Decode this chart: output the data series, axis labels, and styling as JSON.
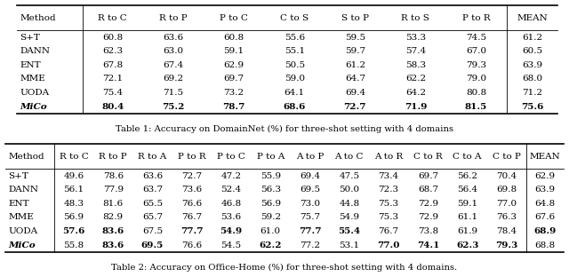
{
  "table1": {
    "caption": "Table 1: Accuracy on DomainNet (%) for three-shot setting with 4 domains",
    "headers": [
      "Method",
      "R to C",
      "R to P",
      "P to C",
      "C to S",
      "S to P",
      "R to S",
      "P to R",
      "MEAN"
    ],
    "rows": [
      {
        "method": "S+T",
        "values": [
          "60.8",
          "63.6",
          "60.8",
          "55.6",
          "59.5",
          "53.3",
          "74.5",
          "61.2"
        ],
        "bold": []
      },
      {
        "method": "DANN",
        "values": [
          "62.3",
          "63.0",
          "59.1",
          "55.1",
          "59.7",
          "57.4",
          "67.0",
          "60.5"
        ],
        "bold": []
      },
      {
        "method": "ENT",
        "values": [
          "67.8",
          "67.4",
          "62.9",
          "50.5",
          "61.2",
          "58.3",
          "79.3",
          "63.9"
        ],
        "bold": []
      },
      {
        "method": "MME",
        "values": [
          "72.1",
          "69.2",
          "69.7",
          "59.0",
          "64.7",
          "62.2",
          "79.0",
          "68.0"
        ],
        "bold": []
      },
      {
        "method": "UODA",
        "values": [
          "75.4",
          "71.5",
          "73.2",
          "64.1",
          "69.4",
          "64.2",
          "80.8",
          "71.2"
        ],
        "bold": []
      },
      {
        "method": "MiCo",
        "values": [
          "80.4",
          "75.2",
          "78.7",
          "68.6",
          "72.7",
          "71.9",
          "81.5",
          "75.6"
        ],
        "bold": [
          0,
          1,
          2,
          3,
          4,
          5,
          6,
          7
        ]
      }
    ]
  },
  "table2": {
    "caption": "Table 2: Accuracy on Office-Home (%) for three-shot setting with 4 domains.",
    "headers": [
      "Method",
      "R to C",
      "R to P",
      "R to A",
      "P to R",
      "P to C",
      "P to A",
      "A to P",
      "A to C",
      "A to R",
      "C to R",
      "C to A",
      "C to P",
      "MEAN"
    ],
    "rows": [
      {
        "method": "S+T",
        "values": [
          "49.6",
          "78.6",
          "63.6",
          "72.7",
          "47.2",
          "55.9",
          "69.4",
          "47.5",
          "73.4",
          "69.7",
          "56.2",
          "70.4",
          "62.9"
        ],
        "bold": []
      },
      {
        "method": "DANN",
        "values": [
          "56.1",
          "77.9",
          "63.7",
          "73.6",
          "52.4",
          "56.3",
          "69.5",
          "50.0",
          "72.3",
          "68.7",
          "56.4",
          "69.8",
          "63.9"
        ],
        "bold": []
      },
      {
        "method": "ENT",
        "values": [
          "48.3",
          "81.6",
          "65.5",
          "76.6",
          "46.8",
          "56.9",
          "73.0",
          "44.8",
          "75.3",
          "72.9",
          "59.1",
          "77.0",
          "64.8"
        ],
        "bold": []
      },
      {
        "method": "MME",
        "values": [
          "56.9",
          "82.9",
          "65.7",
          "76.7",
          "53.6",
          "59.2",
          "75.7",
          "54.9",
          "75.3",
          "72.9",
          "61.1",
          "76.3",
          "67.6"
        ],
        "bold": []
      },
      {
        "method": "UODA",
        "values": [
          "57.6",
          "83.6",
          "67.5",
          "77.7",
          "54.9",
          "61.0",
          "77.7",
          "55.4",
          "76.7",
          "73.8",
          "61.9",
          "78.4",
          "68.9"
        ],
        "bold": [
          0,
          1,
          3,
          4,
          6,
          7,
          12
        ]
      },
      {
        "method": "MiCo",
        "values": [
          "55.8",
          "83.6",
          "69.5",
          "76.6",
          "54.5",
          "62.2",
          "77.2",
          "53.1",
          "77.0",
          "74.1",
          "62.3",
          "79.3",
          "68.8"
        ],
        "bold": [
          1,
          2,
          5,
          8,
          9,
          10,
          11
        ]
      }
    ]
  },
  "bg_color": "#ffffff",
  "text_color": "#000000",
  "line_color": "#000000"
}
